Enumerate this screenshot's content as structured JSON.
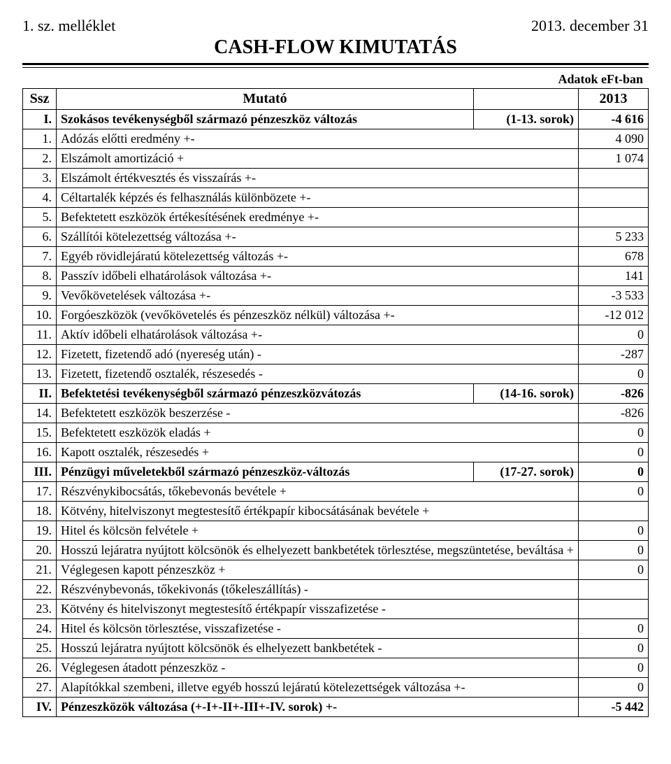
{
  "header": {
    "left": "1. sz. melléklet",
    "right": "2013. december 31",
    "title": "CASH-FLOW KIMUTATÁS",
    "subtitle": "Adatok eFt-ban"
  },
  "table": {
    "columns": {
      "ssz": "Ssz",
      "label": "Mutató",
      "year": "2013"
    },
    "rows": [
      {
        "n": "I.",
        "label": "Szokásos tevékenységből származó pénzeszköz változás",
        "range": "(1-13. sorok)",
        "val": "-4 616",
        "bold": true
      },
      {
        "n": "1.",
        "label": "Adózás előtti eredmény +-",
        "val": "4 090"
      },
      {
        "n": "2.",
        "label": "Elszámolt amortizáció +",
        "val": "1 074"
      },
      {
        "n": "3.",
        "label": "Elszámolt értékvesztés és visszaírás +-",
        "val": ""
      },
      {
        "n": "4.",
        "label": "Céltartalék képzés és felhasználás különbözete +-",
        "val": ""
      },
      {
        "n": "5.",
        "label": "Befektetett eszközök értékesítésének eredménye +-",
        "val": ""
      },
      {
        "n": "6.",
        "label": "Szállítói kötelezettség változása +-",
        "val": "5 233"
      },
      {
        "n": "7.",
        "label": "Egyéb rövidlejáratú kötelezettség változás +-",
        "val": "678"
      },
      {
        "n": "8.",
        "label": "Passzív időbeli elhatárolások változása +-",
        "val": "141"
      },
      {
        "n": "9.",
        "label": "Vevőkövetelések változása +-",
        "val": "-3 533"
      },
      {
        "n": "10.",
        "label": "Forgóeszközök (vevőkövetelés és pénzeszköz nélkül) változása +-",
        "val": "-12 012"
      },
      {
        "n": "11.",
        "label": "Aktív időbeli elhatárolások változása +-",
        "val": "0"
      },
      {
        "n": "12.",
        "label": "Fizetett, fizetendő adó (nyereség után) -",
        "val": "-287"
      },
      {
        "n": "13.",
        "label": "Fizetett, fizetendő osztalék, részesedés -",
        "val": "0"
      },
      {
        "n": "II.",
        "label": "Befektetési tevékenységből származó pénzeszközvátozás",
        "range": "(14-16. sorok)",
        "val": "-826",
        "bold": true
      },
      {
        "n": "14.",
        "label": "Befektetett eszközök beszerzése -",
        "val": "-826"
      },
      {
        "n": "15.",
        "label": "Befektetett eszközök eladás +",
        "val": "0"
      },
      {
        "n": "16.",
        "label": "Kapott osztalék, részesedés +",
        "val": "0"
      },
      {
        "n": "III.",
        "label": "Pénzügyi műveletekből származó pénzeszköz-változás",
        "range": "(17-27. sorok)",
        "val": "0",
        "bold": true
      },
      {
        "n": "17.",
        "label": "Részvénykibocsátás, tőkebevonás bevétele +",
        "val": "0"
      },
      {
        "n": "18.",
        "label": "Kötvény, hitelviszonyt megtestesítő értékpapír kibocsátásának bevétele +",
        "val": ""
      },
      {
        "n": "19.",
        "label": "Hitel és kölcsön felvétele +",
        "val": "0"
      },
      {
        "n": "20.",
        "label": "Hosszú lejáratra nyújtott kölcsönök és elhelyezett bankbetétek törlesztése, megszüntetése, beváltása +",
        "val": "0"
      },
      {
        "n": "21.",
        "label": "Véglegesen kapott pénzeszköz +",
        "val": "0"
      },
      {
        "n": "22.",
        "label": "Részvénybevonás, tőkekivonás (tőkeleszállítás) -",
        "val": ""
      },
      {
        "n": "23.",
        "label": "Kötvény és hitelviszonyt megtestesítő értékpapír visszafizetése -",
        "val": ""
      },
      {
        "n": "24.",
        "label": "Hitel és kölcsön törlesztése, visszafizetése -",
        "val": "0"
      },
      {
        "n": "25.",
        "label": "Hosszú lejáratra nyújtott kölcsönök és elhelyezett bankbetétek -",
        "val": "0"
      },
      {
        "n": "26.",
        "label": "Véglegesen átadott pénzeszköz -",
        "val": "0"
      },
      {
        "n": "27.",
        "label": "Alapítókkal szembeni, illetve egyéb hosszú lejáratú kötelezettségek változása +-",
        "val": "0"
      },
      {
        "n": "IV.",
        "label": "Pénzeszközök változása (+-I+-II+-III+-IV. sorok) +-",
        "val": "-5 442",
        "bold": true
      }
    ]
  }
}
